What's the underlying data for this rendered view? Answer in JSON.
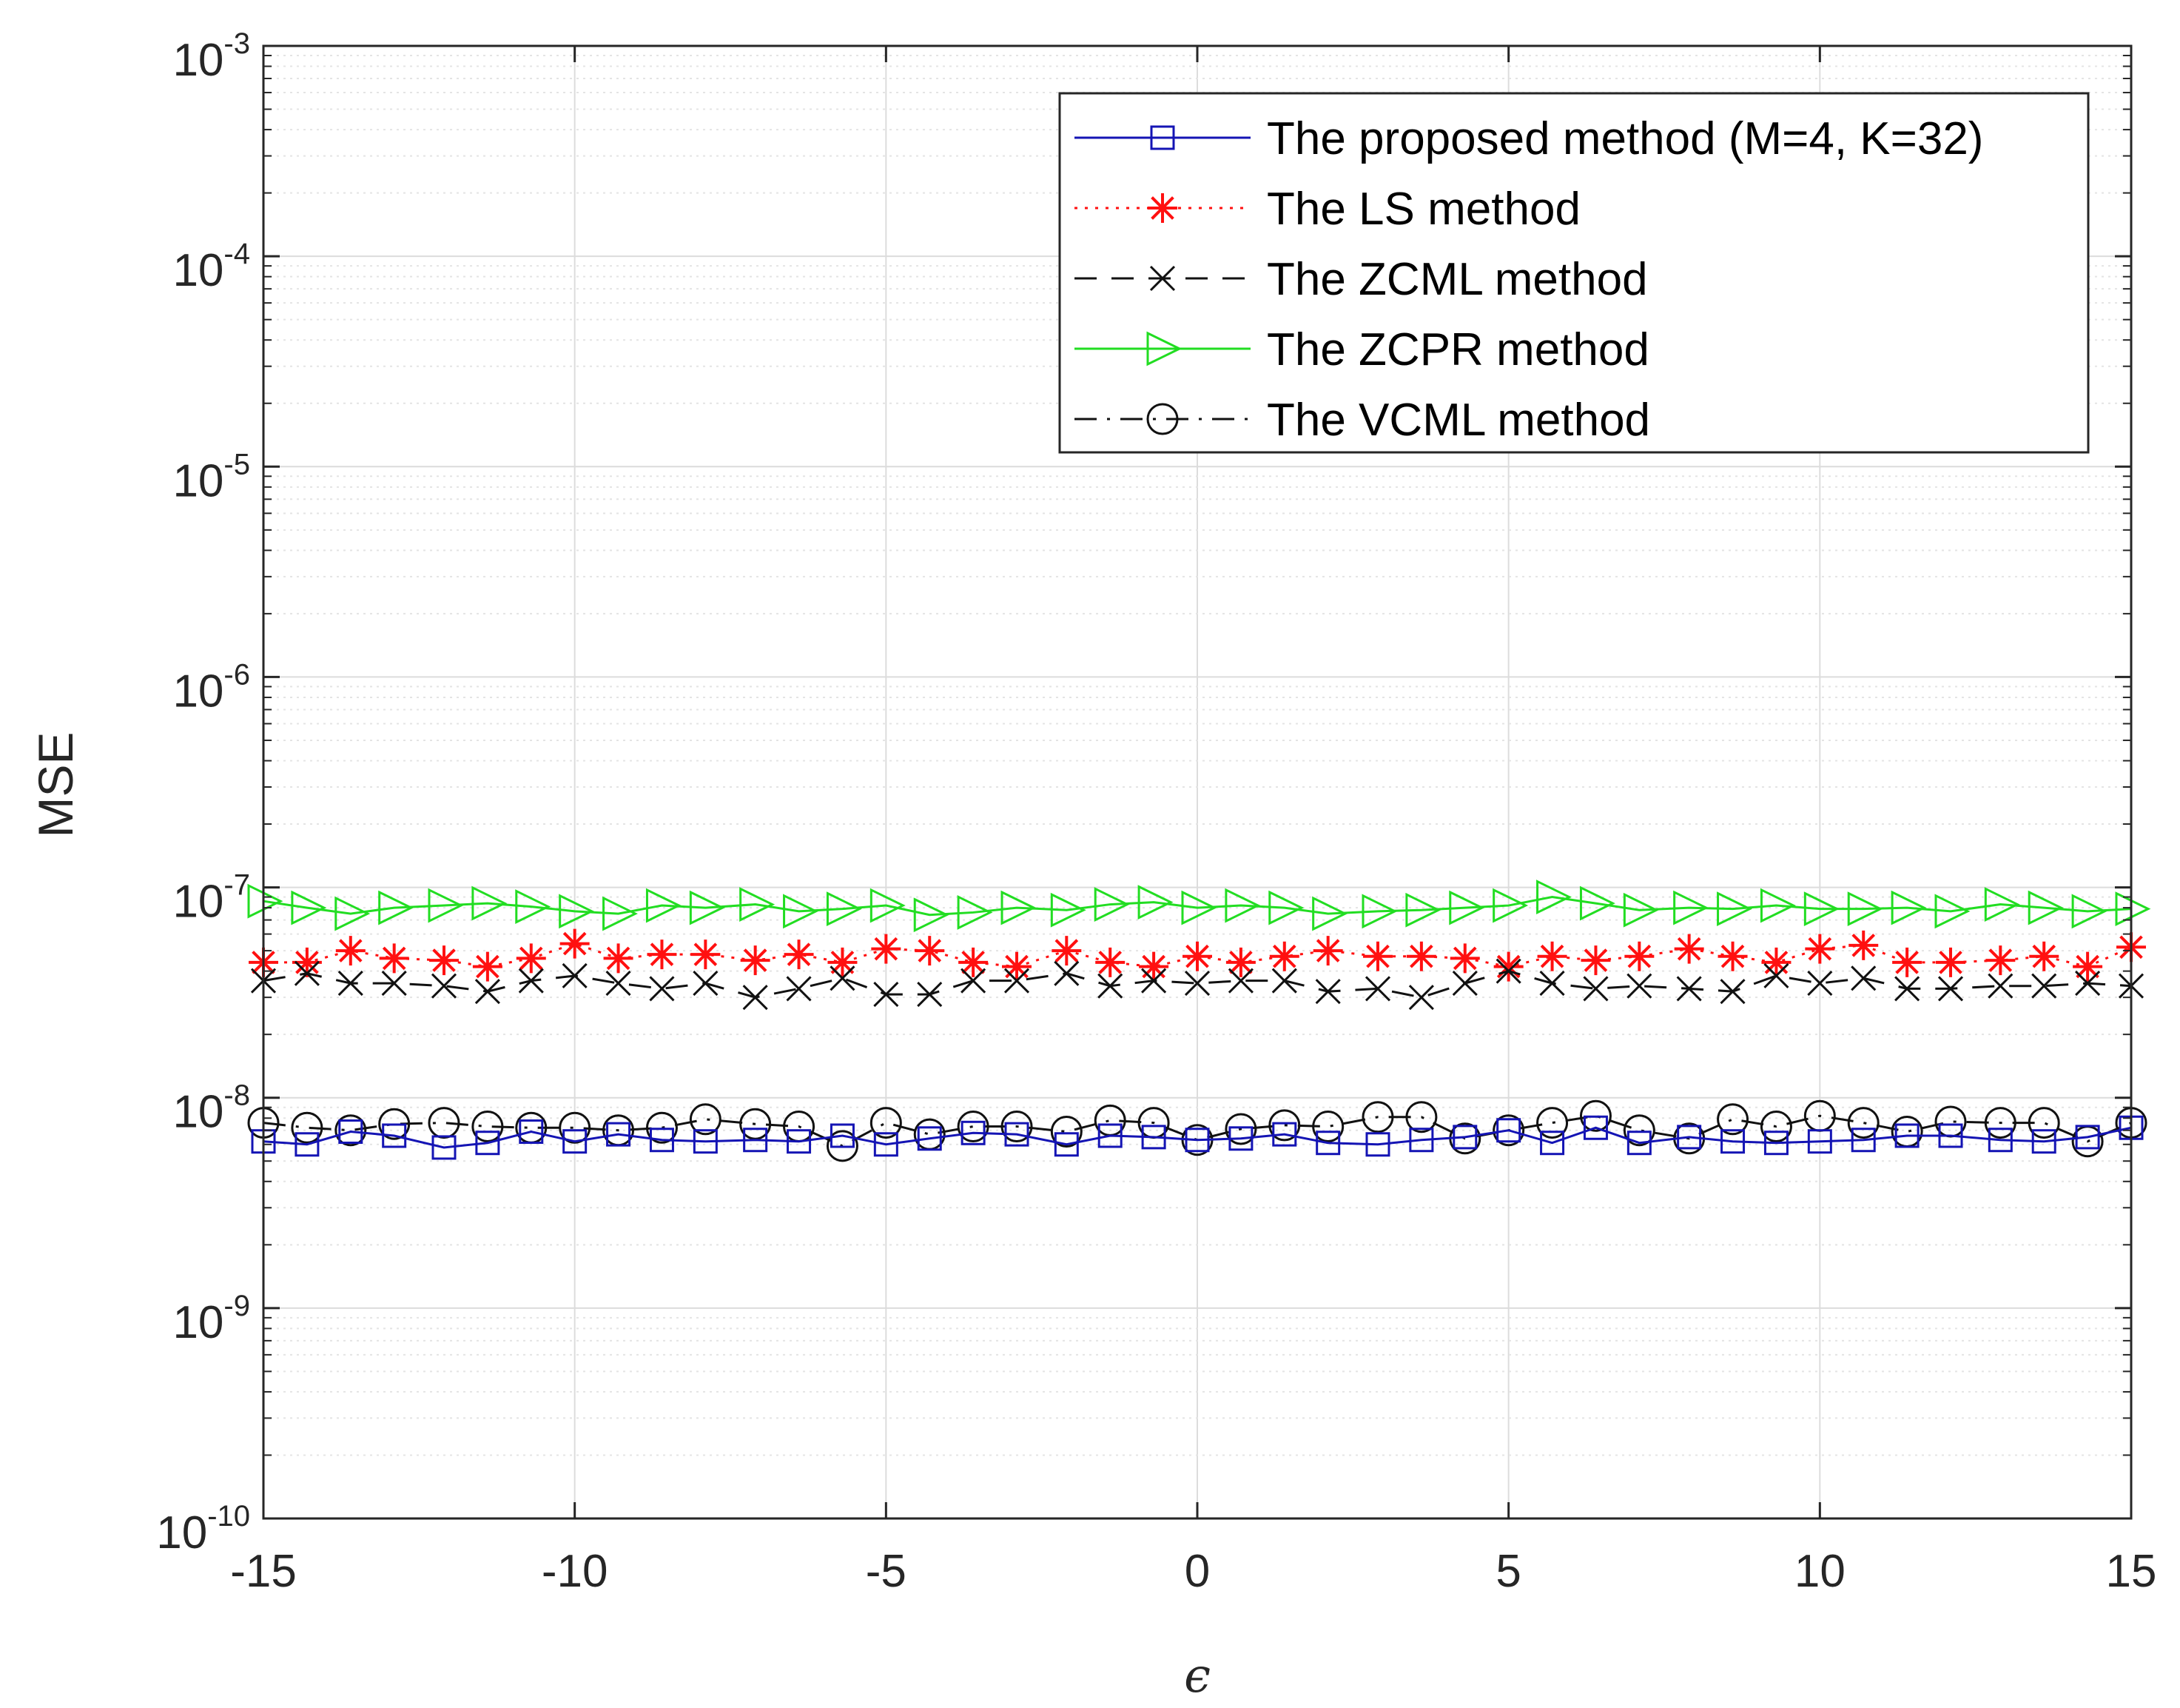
{
  "chart_data": {
    "type": "line",
    "title": "",
    "xlabel": "ϵ",
    "ylabel": "MSE",
    "xlim": [
      -15,
      15
    ],
    "ylim": [
      1e-10,
      0.001
    ],
    "yscale": "log",
    "grid": true,
    "legend_position": "top-right",
    "x_ticks": [
      {
        "value": -15,
        "label": "-15"
      },
      {
        "value": -10,
        "label": "-10"
      },
      {
        "value": -5,
        "label": "-5"
      },
      {
        "value": 0,
        "label": "0"
      },
      {
        "value": 5,
        "label": "5"
      },
      {
        "value": 10,
        "label": "10"
      },
      {
        "value": 15,
        "label": "15"
      }
    ],
    "y_ticks": [
      {
        "exp": -10,
        "base": "10",
        "power": "-10"
      },
      {
        "exp": -9,
        "base": "10",
        "power": "-9"
      },
      {
        "exp": -8,
        "base": "10",
        "power": "-8"
      },
      {
        "exp": -7,
        "base": "10",
        "power": "-7"
      },
      {
        "exp": -6,
        "base": "10",
        "power": "-6"
      },
      {
        "exp": -5,
        "base": "10",
        "power": "-5"
      },
      {
        "exp": -4,
        "base": "10",
        "power": "-4"
      },
      {
        "exp": -3,
        "base": "10",
        "power": "-3"
      }
    ],
    "x": [
      -15.0,
      -14.3,
      -13.6,
      -12.9,
      -12.1,
      -11.4,
      -10.7,
      -10.0,
      -9.3,
      -8.6,
      -7.9,
      -7.1,
      -6.4,
      -5.7,
      -5.0,
      -4.3,
      -3.6,
      -2.9,
      -2.1,
      -1.4,
      -0.7,
      0.0,
      0.7,
      1.4,
      2.1,
      2.9,
      3.6,
      4.3,
      5.0,
      5.7,
      6.4,
      7.1,
      7.9,
      8.6,
      9.3,
      10.0,
      10.7,
      11.4,
      12.1,
      12.9,
      13.6,
      14.3,
      15.0
    ],
    "series": [
      {
        "name": "The proposed method (M=4, K=32)",
        "color": "#1414b4",
        "dash": "solid",
        "marker": "square",
        "values": [
          6.2e-09,
          6e-09,
          6.9e-09,
          6.6e-09,
          5.8e-09,
          6.1e-09,
          6.9e-09,
          6.2e-09,
          6.7e-09,
          6.3e-09,
          6.2e-09,
          6.3e-09,
          6.2e-09,
          6.6e-09,
          6e-09,
          6.4e-09,
          6.8e-09,
          6.7e-09,
          6e-09,
          6.6e-09,
          6.5e-09,
          6.3e-09,
          6.4e-09,
          6.7e-09,
          6.1e-09,
          6e-09,
          6.3e-09,
          6.5e-09,
          7e-09,
          6.1e-09,
          7.2e-09,
          6.1e-09,
          6.5e-09,
          6.2e-09,
          6.1e-09,
          6.2e-09,
          6.3e-09,
          6.6e-09,
          6.6e-09,
          6.3e-09,
          6.2e-09,
          6.5e-09,
          7.2e-09
        ]
      },
      {
        "name": "The LS method",
        "color": "#ff1010",
        "dash": "dotted",
        "marker": "star",
        "values": [
          4.4e-08,
          4.4e-08,
          5e-08,
          4.6e-08,
          4.5e-08,
          4.2e-08,
          4.6e-08,
          5.4e-08,
          4.6e-08,
          4.8e-08,
          4.8e-08,
          4.5e-08,
          4.8e-08,
          4.4e-08,
          5.1e-08,
          5e-08,
          4.4e-08,
          4.2e-08,
          5e-08,
          4.4e-08,
          4.2e-08,
          4.7e-08,
          4.4e-08,
          4.7e-08,
          5e-08,
          4.7e-08,
          4.7e-08,
          4.6e-08,
          4.2e-08,
          4.7e-08,
          4.5e-08,
          4.7e-08,
          5.1e-08,
          4.7e-08,
          4.4e-08,
          5.1e-08,
          5.3e-08,
          4.4e-08,
          4.4e-08,
          4.5e-08,
          4.7e-08,
          4.2e-08,
          5.2e-08
        ]
      },
      {
        "name": "The ZCML method",
        "color": "#111111",
        "dash": "dashed",
        "marker": "x",
        "values": [
          3.6e-08,
          3.9e-08,
          3.5e-08,
          3.5e-08,
          3.4e-08,
          3.2e-08,
          3.6e-08,
          3.8e-08,
          3.5e-08,
          3.3e-08,
          3.5e-08,
          3e-08,
          3.3e-08,
          3.7e-08,
          3.1e-08,
          3.1e-08,
          3.6e-08,
          3.6e-08,
          3.9e-08,
          3.4e-08,
          3.6e-08,
          3.5e-08,
          3.6e-08,
          3.6e-08,
          3.2e-08,
          3.3e-08,
          3e-08,
          3.5e-08,
          4e-08,
          3.5e-08,
          3.3e-08,
          3.4e-08,
          3.3e-08,
          3.2e-08,
          3.8e-08,
          3.5e-08,
          3.7e-08,
          3.3e-08,
          3.3e-08,
          3.4e-08,
          3.4e-08,
          3.5e-08,
          3.4e-08
        ]
      },
      {
        "name": "The ZCPR method",
        "color": "#22dd22",
        "dash": "solid",
        "marker": "triangle-right",
        "values": [
          8.6e-08,
          8e-08,
          7.5e-08,
          8e-08,
          8.2e-08,
          8.4e-08,
          8.1e-08,
          7.7e-08,
          7.5e-08,
          8.2e-08,
          8e-08,
          8.3e-08,
          7.7e-08,
          7.9e-08,
          8.2e-08,
          7.4e-08,
          7.6e-08,
          8e-08,
          7.8e-08,
          8.3e-08,
          8.5e-08,
          8e-08,
          8.2e-08,
          8e-08,
          7.5e-08,
          7.7e-08,
          7.8e-08,
          8e-08,
          8.2e-08,
          9e-08,
          8.4e-08,
          7.8e-08,
          8e-08,
          7.9e-08,
          8.2e-08,
          7.9e-08,
          7.9e-08,
          8e-08,
          7.7e-08,
          8.3e-08,
          8e-08,
          7.7e-08,
          7.9e-08
        ]
      },
      {
        "name": "The VCML method",
        "color": "#111111",
        "dash": "dashdot",
        "marker": "circle",
        "values": [
          7.6e-09,
          7.2e-09,
          7e-09,
          7.5e-09,
          7.6e-09,
          7.3e-09,
          7.2e-09,
          7.2e-09,
          7e-09,
          7.2e-09,
          7.9e-09,
          7.5e-09,
          7.3e-09,
          5.9e-09,
          7.6e-09,
          6.7e-09,
          7.3e-09,
          7.3e-09,
          6.9e-09,
          7.8e-09,
          7.6e-09,
          6.3e-09,
          7.1e-09,
          7.4e-09,
          7.3e-09,
          8.1e-09,
          8.1e-09,
          6.4e-09,
          7e-09,
          7.6e-09,
          8.2e-09,
          7e-09,
          6.4e-09,
          7.9e-09,
          7.3e-09,
          8.2e-09,
          7.6e-09,
          6.9e-09,
          7.7e-09,
          7.6e-09,
          7.6e-09,
          6.2e-09,
          7.6e-09
        ]
      }
    ]
  }
}
